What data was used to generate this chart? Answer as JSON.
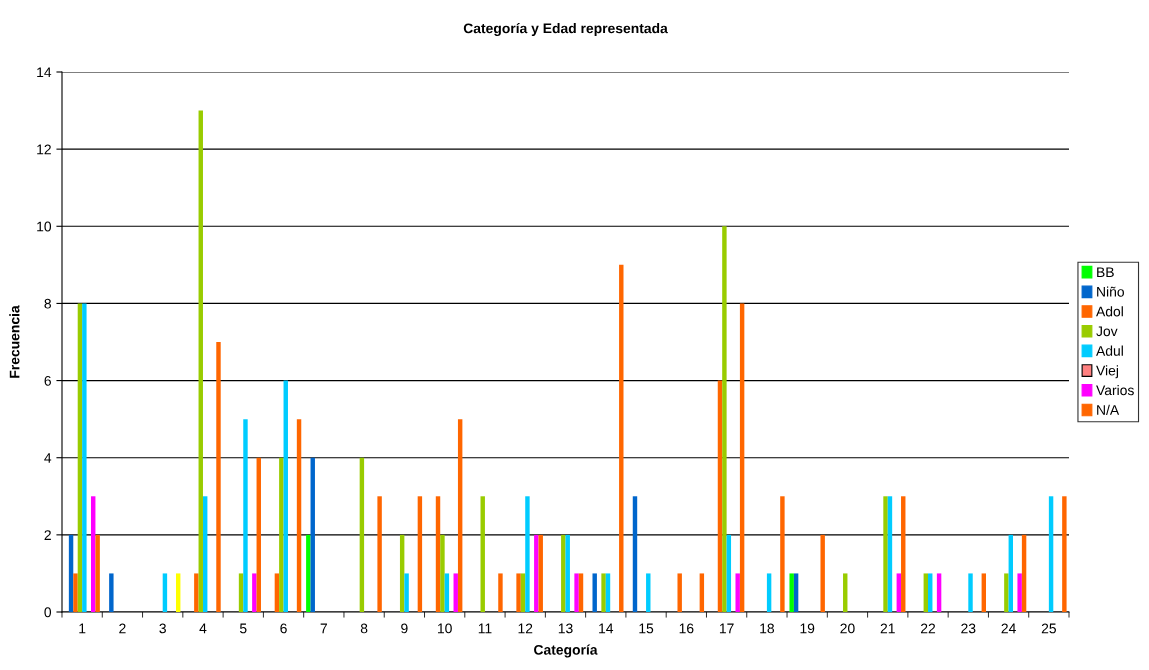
{
  "chart_data": {
    "type": "bar",
    "title": "Categoría y Edad representada",
    "xlabel": "Categoría",
    "ylabel": "Frecuencia",
    "categories": [
      "1",
      "2",
      "3",
      "4",
      "5",
      "6",
      "7",
      "8",
      "9",
      "10",
      "11",
      "12",
      "13",
      "14",
      "15",
      "16",
      "17",
      "18",
      "19",
      "20",
      "21",
      "22",
      "23",
      "24",
      "25"
    ],
    "series": [
      {
        "name": "BB",
        "color": "#00ff00",
        "values": [
          0,
          0,
          0,
          0,
          0,
          0,
          2,
          0,
          0,
          0,
          0,
          0,
          0,
          0,
          0,
          0,
          0,
          0,
          1,
          0,
          0,
          0,
          0,
          0,
          0
        ]
      },
      {
        "name": "Niño",
        "color": "#0066cc",
        "values": [
          2,
          1,
          0,
          0,
          0,
          0,
          4,
          0,
          0,
          0,
          0,
          0,
          0,
          1,
          3,
          0,
          0,
          0,
          1,
          0,
          0,
          0,
          0,
          0,
          0
        ]
      },
      {
        "name": "Adol",
        "color": "#ff6600",
        "values": [
          1,
          0,
          0,
          1,
          0,
          1,
          0,
          0,
          0,
          3,
          0,
          1,
          0,
          0,
          0,
          1,
          6,
          0,
          0,
          0,
          0,
          0,
          0,
          0,
          0
        ]
      },
      {
        "name": "Jov",
        "color": "#99cc00",
        "values": [
          8,
          0,
          0,
          13,
          1,
          4,
          0,
          4,
          2,
          2,
          3,
          1,
          2,
          1,
          0,
          0,
          10,
          0,
          0,
          1,
          3,
          1,
          0,
          1,
          0
        ]
      },
      {
        "name": "Adul",
        "color": "#00ccff",
        "values": [
          8,
          0,
          1,
          3,
          5,
          6,
          0,
          0,
          1,
          1,
          0,
          3,
          2,
          1,
          1,
          0,
          2,
          1,
          0,
          0,
          3,
          1,
          1,
          2,
          3
        ]
      },
      {
        "name": "Viej",
        "color": "#ff8080",
        "values": [
          0,
          0,
          0,
          0,
          0,
          0,
          0,
          0,
          0,
          0,
          0,
          0,
          0,
          0,
          0,
          0,
          0,
          0,
          0,
          0,
          0,
          0,
          0,
          0,
          0
        ]
      },
      {
        "name": "Varios",
        "color": "#ff00ff",
        "values": [
          3,
          0,
          0,
          0,
          1,
          0,
          0,
          0,
          0,
          1,
          0,
          2,
          1,
          0,
          0,
          0,
          1,
          0,
          0,
          0,
          1,
          1,
          0,
          1,
          0
        ]
      },
      {
        "name": "N/A",
        "color": "#ff6600",
        "colors": [
          "#ff6600",
          "#ff6600",
          "#ffff00",
          "#ff6600",
          "#ff6600",
          "#ff6600",
          "#ff6600",
          "#ff6600",
          "#ff6600",
          "#ff6600",
          "#ff6600",
          "#ff6600",
          "#ff6600",
          "#ff6600",
          "#ff6600",
          "#ff6600",
          "#ff6600",
          "#ff6600",
          "#ff6600",
          "#ff6600",
          "#ff6600",
          "#ff6600",
          "#ff6600",
          "#ff6600",
          "#ff6600"
        ],
        "values": [
          2,
          0,
          1,
          7,
          4,
          5,
          0,
          3,
          3,
          5,
          1,
          2,
          1,
          9,
          0,
          1,
          8,
          3,
          2,
          0,
          3,
          0,
          1,
          2,
          3
        ]
      }
    ],
    "ylim": [
      0,
      14
    ],
    "yticks": [
      0,
      2,
      4,
      6,
      8,
      10,
      12,
      14
    ],
    "grid": "y",
    "legend": "right"
  }
}
